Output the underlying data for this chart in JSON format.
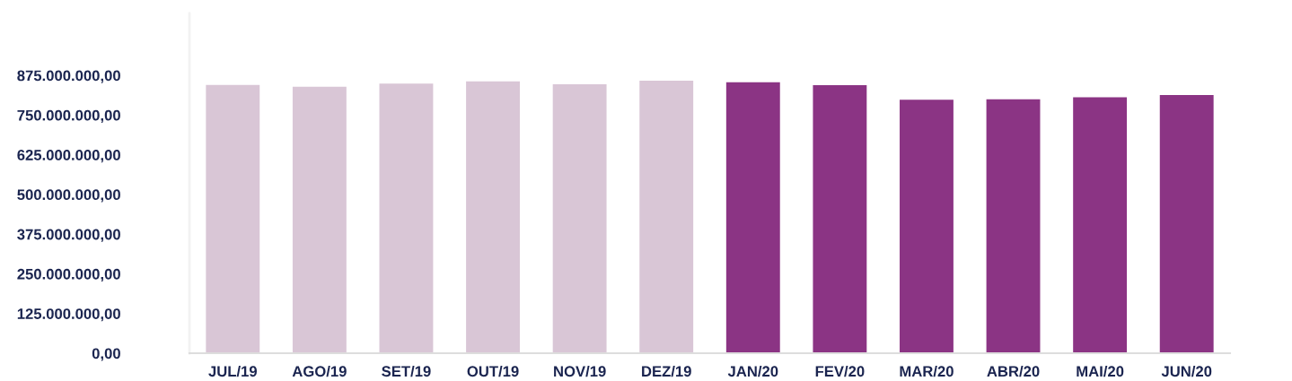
{
  "chart_data": {
    "type": "bar",
    "categories": [
      "JUL/19",
      "AGO/19",
      "SET/19",
      "OUT/19",
      "NOV/19",
      "DEZ/19",
      "JAN/20",
      "FEV/20",
      "MAR/20",
      "ABR/20",
      "MAI/20",
      "JUN/20"
    ],
    "values": [
      845000000,
      839000000,
      849000000,
      856000000,
      847000000,
      858000000,
      853000000,
      844000000,
      798000000,
      800000000,
      806000000,
      813000000
    ],
    "colors": [
      "#d9c6d6",
      "#d9c6d6",
      "#d9c6d6",
      "#d9c6d6",
      "#d9c6d6",
      "#d9c6d6",
      "#8b3484",
      "#8b3484",
      "#8b3484",
      "#8b3484",
      "#8b3484",
      "#8b3484"
    ],
    "ylim": [
      0,
      1070000000
    ],
    "yticks": [
      {
        "value": 0,
        "label": "0,00"
      },
      {
        "value": 125000000,
        "label": "125.000.000,00"
      },
      {
        "value": 250000000,
        "label": "250.000.000,00"
      },
      {
        "value": 375000000,
        "label": "375.000.000,00"
      },
      {
        "value": 500000000,
        "label": "500.000.000,00"
      },
      {
        "value": 625000000,
        "label": "625.000.000,00"
      },
      {
        "value": 750000000,
        "label": "750.000.000,00"
      },
      {
        "value": 875000000,
        "label": "875.000.000,00"
      }
    ],
    "grid": false,
    "legend": false
  }
}
